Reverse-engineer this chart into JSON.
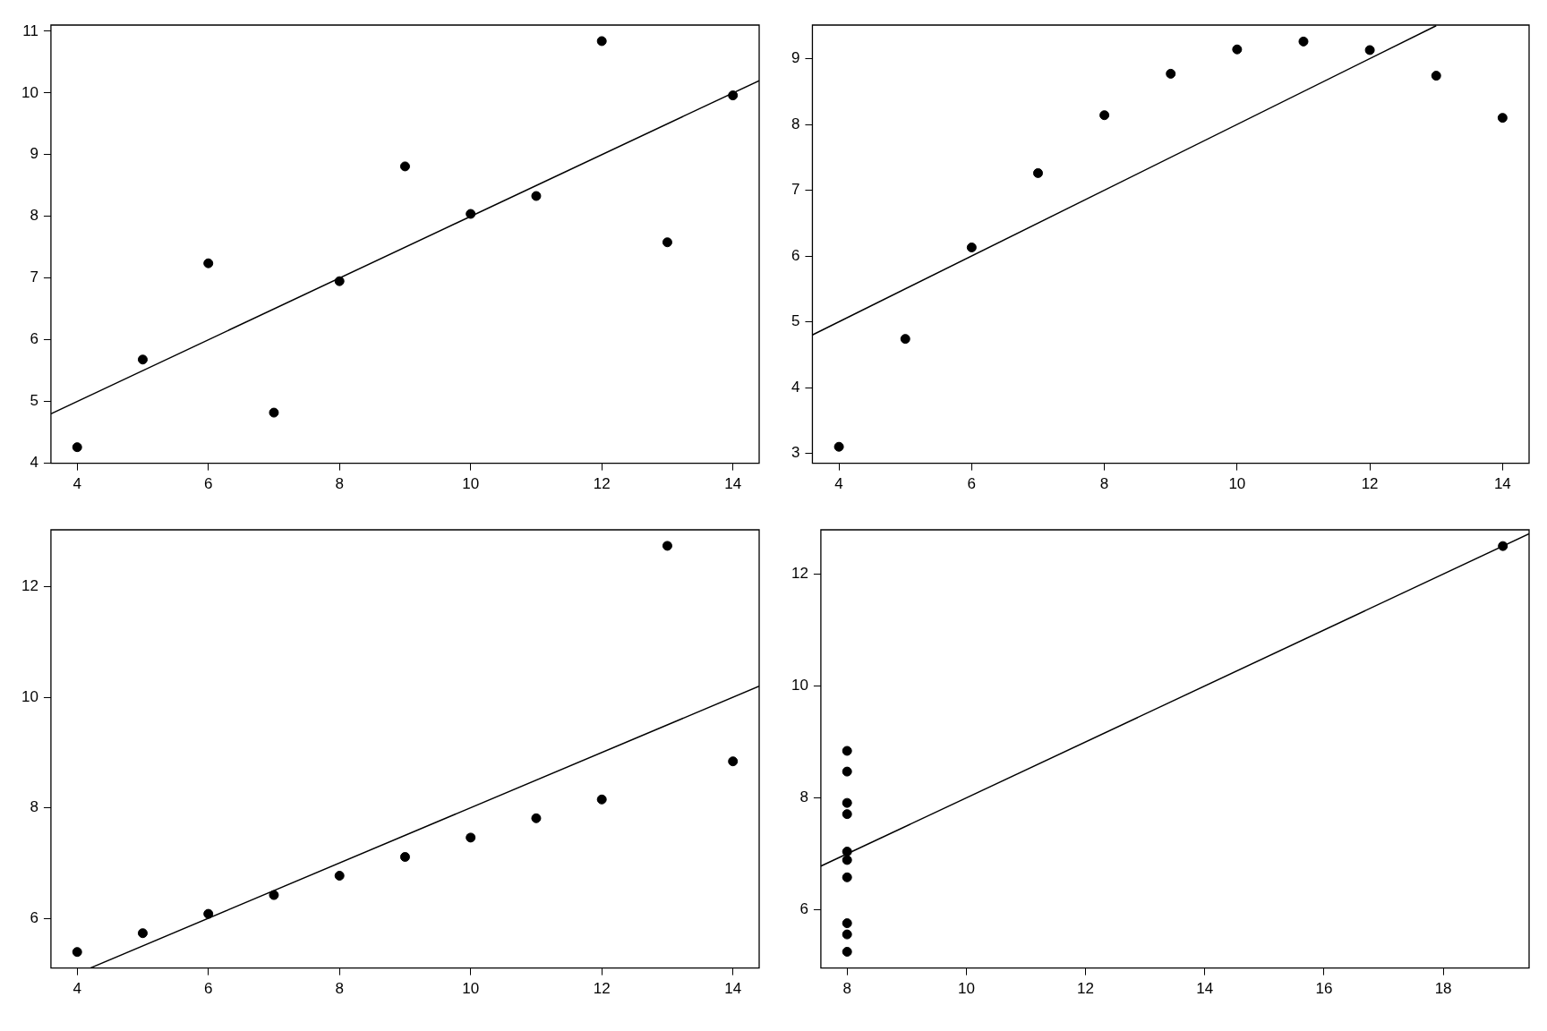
{
  "chart_data": [
    {
      "type": "scatter",
      "xlim": [
        3.6,
        14.4
      ],
      "ylim": [
        4,
        11.1
      ],
      "xticks": [
        4,
        6,
        8,
        10,
        12,
        14
      ],
      "yticks": [
        4,
        5,
        6,
        7,
        8,
        9,
        10,
        11
      ],
      "grid": false,
      "legend": false,
      "series": [
        {
          "color": "#000000",
          "marker": "circle",
          "x": [
            10,
            8,
            13,
            9,
            11,
            14,
            6,
            4,
            12,
            7,
            5
          ],
          "values": [
            8.04,
            6.95,
            7.58,
            8.81,
            8.33,
            9.96,
            7.24,
            4.26,
            10.84,
            4.82,
            5.68
          ]
        },
        {
          "type": "line",
          "color": "#000000",
          "x": [
            3.6,
            14.4
          ],
          "values": [
            4.8,
            10.2
          ]
        }
      ]
    },
    {
      "type": "scatter",
      "xlim": [
        3.6,
        14.4
      ],
      "ylim": [
        2.85,
        9.51
      ],
      "xticks": [
        4,
        6,
        8,
        10,
        12,
        14
      ],
      "yticks": [
        3,
        4,
        5,
        6,
        7,
        8,
        9
      ],
      "grid": false,
      "legend": false,
      "series": [
        {
          "color": "#000000",
          "marker": "circle",
          "x": [
            10,
            8,
            13,
            9,
            11,
            14,
            6,
            4,
            12,
            7,
            5
          ],
          "values": [
            9.14,
            8.14,
            8.74,
            8.77,
            9.26,
            8.1,
            6.13,
            3.1,
            9.13,
            7.26,
            4.74
          ]
        },
        {
          "type": "line",
          "color": "#000000",
          "x": [
            3.6,
            13.0
          ],
          "values": [
            4.8,
            9.5
          ]
        }
      ]
    },
    {
      "type": "scatter",
      "xlim": [
        3.6,
        14.4
      ],
      "ylim": [
        5.1,
        13.03
      ],
      "xticks": [
        4,
        6,
        8,
        10,
        12,
        14
      ],
      "yticks": [
        6,
        8,
        10,
        12
      ],
      "grid": false,
      "legend": false,
      "series": [
        {
          "color": "#000000",
          "marker": "circle",
          "x": [
            10,
            8,
            13,
            9,
            11,
            14,
            6,
            4,
            12,
            7,
            5
          ],
          "values": [
            7.46,
            6.77,
            12.74,
            7.11,
            7.81,
            8.84,
            6.08,
            5.39,
            8.15,
            6.42,
            5.73
          ]
        },
        {
          "type": "line",
          "color": "#000000",
          "x": [
            4.2,
            14.4
          ],
          "values": [
            5.1,
            10.2
          ]
        }
      ]
    },
    {
      "type": "scatter",
      "xlim": [
        7.56,
        19.44
      ],
      "ylim": [
        4.96,
        12.79
      ],
      "xticks": [
        8,
        10,
        12,
        14,
        16,
        18
      ],
      "yticks": [
        6,
        8,
        10,
        12
      ],
      "grid": false,
      "legend": false,
      "series": [
        {
          "color": "#000000",
          "marker": "circle",
          "x": [
            8,
            8,
            8,
            8,
            8,
            8,
            8,
            19,
            8,
            8,
            8
          ],
          "values": [
            6.58,
            5.76,
            7.71,
            8.84,
            8.47,
            7.04,
            5.25,
            12.5,
            5.56,
            7.91,
            6.89
          ]
        },
        {
          "type": "line",
          "color": "#000000",
          "x": [
            7.56,
            19.44
          ],
          "values": [
            6.78,
            12.72
          ]
        }
      ]
    }
  ]
}
